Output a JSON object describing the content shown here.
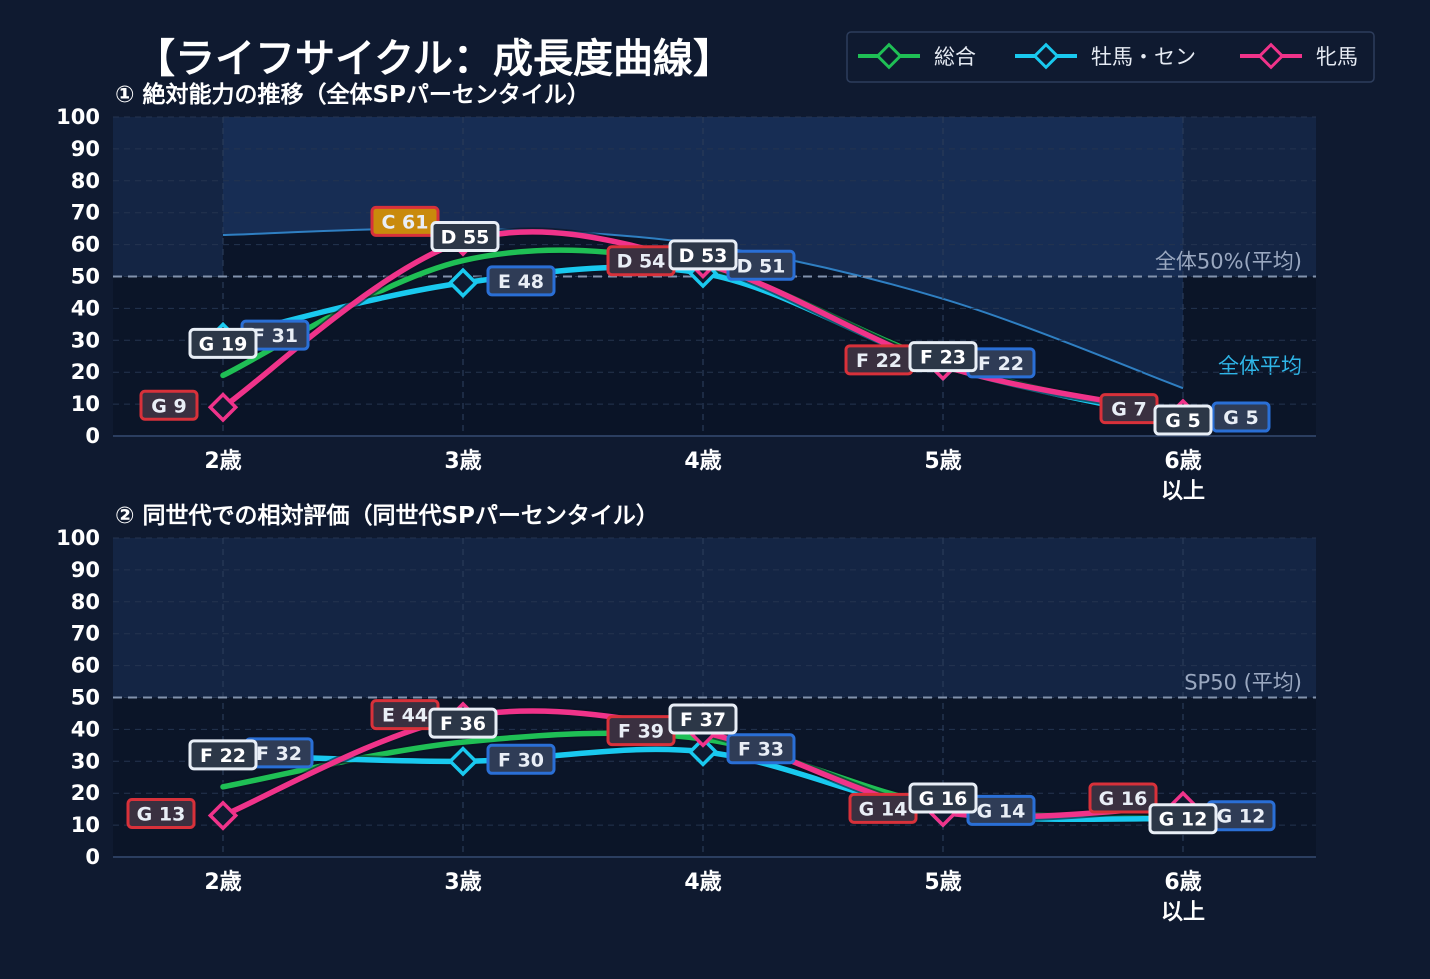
{
  "title": "【ライフサイクル：成長度曲線】",
  "legend": [
    {
      "label": "総合",
      "color": "#1fbf55"
    },
    {
      "label": "牡馬・セン",
      "color": "#19c9ef"
    },
    {
      "label": "牝馬",
      "color": "#f0338a"
    }
  ],
  "chart_data": [
    {
      "type": "line",
      "subtitle": "① 絶対能力の推移（全体SPパーセンタイル）",
      "categories": [
        "2歳",
        "3歳",
        "4歳",
        "5歳",
        "6歳\n以上"
      ],
      "ylim": [
        0,
        100
      ],
      "yticks": [
        0,
        10,
        20,
        30,
        40,
        50,
        60,
        70,
        80,
        90,
        100
      ],
      "grid": true,
      "legend_position": "top-right",
      "reference_line": {
        "value": 50,
        "label": "全体50%(平均)"
      },
      "average_curve": {
        "label": "全体平均",
        "values": [
          63,
          65,
          60,
          43,
          15
        ]
      },
      "series": [
        {
          "name": "総合",
          "values": [
            19,
            55,
            53,
            23,
            5
          ],
          "labels": [
            "G 19",
            "D 55",
            "D 53",
            "F 23",
            "G 5"
          ]
        },
        {
          "name": "牡馬・セン",
          "values": [
            31,
            48,
            51,
            22,
            5
          ],
          "labels": [
            "F 31",
            "E 48",
            "D 51",
            "F 22",
            "G 5"
          ]
        },
        {
          "name": "牝馬",
          "values": [
            9,
            61,
            54,
            22,
            7
          ],
          "labels": [
            "G 9",
            "C 61",
            "D 54",
            "F 22",
            "G 7"
          ]
        }
      ]
    },
    {
      "type": "line",
      "subtitle": "② 同世代での相対評価（同世代SPパーセンタイル）",
      "categories": [
        "2歳",
        "3歳",
        "4歳",
        "5歳",
        "6歳\n以上"
      ],
      "ylim": [
        0,
        100
      ],
      "yticks": [
        0,
        10,
        20,
        30,
        40,
        50,
        60,
        70,
        80,
        90,
        100
      ],
      "grid": true,
      "reference_line": {
        "value": 50,
        "label": "SP50 (平均)"
      },
      "series": [
        {
          "name": "総合",
          "values": [
            22,
            36,
            37,
            16,
            12
          ],
          "labels": [
            "F 22",
            "F 36",
            "F 37",
            "G 16",
            "G 12"
          ]
        },
        {
          "name": "牡馬・セン",
          "values": [
            32,
            30,
            33,
            14,
            12
          ],
          "labels": [
            "F 32",
            "F 30",
            "F 33",
            "G 14",
            "G 12"
          ]
        },
        {
          "name": "牝馬",
          "values": [
            13,
            44,
            39,
            14,
            16
          ],
          "labels": [
            "G 13",
            "E 44",
            "F 39",
            "G 14",
            "G 16"
          ]
        }
      ]
    }
  ]
}
